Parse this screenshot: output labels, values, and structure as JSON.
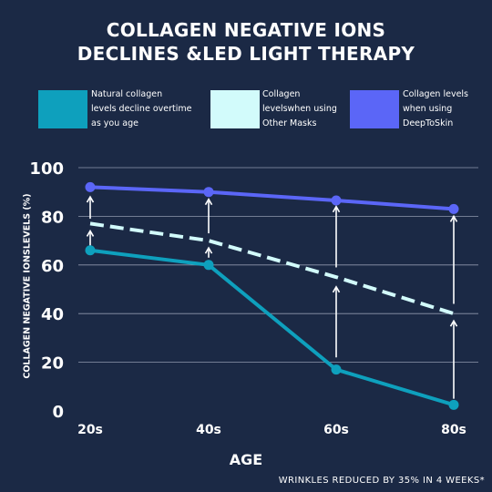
{
  "title_line1": "COLLAGEN NEGATIVE IONS",
  "title_line2": "DECLINES &LED LIGHT THERAPY",
  "footnote": "WRINKLES REDUCED BY 35% IN 4 WEEKS*",
  "legend": [
    {
      "lines": [
        "Natural collagen",
        "levels decline overtime",
        "as you age"
      ],
      "color": "#0ea0bd"
    },
    {
      "lines": [
        "Collagen",
        "levelswhen using",
        "Other Masks"
      ],
      "color": "#d2fbfb"
    },
    {
      "lines": [
        "Collagen levels",
        "when using",
        "DeepToSkin"
      ],
      "color": "#5b66f7"
    }
  ],
  "chart_data": {
    "type": "line",
    "title": "COLLAGEN NEGATIVE IONS DECLINES &LED LIGHT THERAPY",
    "xlabel": "AGE",
    "ylabel": "COLLAGEN NEGATIVE IONSLEVELS (%)",
    "categories": [
      "20s",
      "40s",
      "60s",
      "80s"
    ],
    "ylim": [
      0,
      100
    ],
    "yticks": [
      0,
      20,
      40,
      60,
      80,
      100
    ],
    "grid": true,
    "legend_position": "top",
    "series": [
      {
        "name": "Natural collagen levels decline overtime as you age",
        "values": [
          66,
          60,
          17,
          2.5
        ],
        "color": "#0ea0bd",
        "style": "solid"
      },
      {
        "name": "Collagen levelswhen using Other Masks",
        "values": [
          77,
          70,
          55,
          40
        ],
        "color": "#d2fbfb",
        "style": "dashed"
      },
      {
        "name": "Collagen levels when using DeepToSkin",
        "values": [
          92,
          90,
          86.5,
          83
        ],
        "color": "#5b66f7",
        "style": "solid-markers"
      }
    ],
    "arrows": [
      {
        "category": "20s",
        "from": 68,
        "to": 74
      },
      {
        "category": "20s",
        "from": 79,
        "to": 88
      },
      {
        "category": "40s",
        "from": 63,
        "to": 67
      },
      {
        "category": "40s",
        "from": 73,
        "to": 87
      },
      {
        "category": "60s",
        "from": 22,
        "to": 51
      },
      {
        "category": "60s",
        "from": 59,
        "to": 84
      },
      {
        "category": "80s",
        "from": 5,
        "to": 37
      },
      {
        "category": "80s",
        "from": 44,
        "to": 80
      }
    ]
  }
}
